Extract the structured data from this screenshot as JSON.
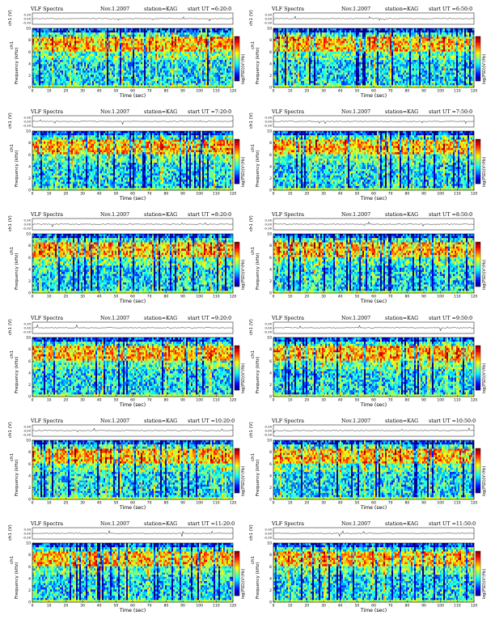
{
  "header": {
    "instrument": "VLF Spectra",
    "station": "station=KAG",
    "xlabel": "Time  (sec)",
    "ylabel_freq": "Frequency  (kHz)",
    "ylabel_ch": "ch1 (V)",
    "ylabel_ch_short": "ch1",
    "colorbar_label": "log(PSD)(V²/Hz)"
  },
  "panels": [
    {
      "date": "Nov.1.2007",
      "start": "start  UT  =6:20:0"
    },
    {
      "date": "Nov.1.2007",
      "start": "start  UT  =6:50:0"
    },
    {
      "date": "Nov.1.2007",
      "start": "start  UT  =7:20:0"
    },
    {
      "date": "Nov.1.2007",
      "start": "start  UT  =7:50:0"
    },
    {
      "date": "Nov.1.2007",
      "start": "start  UT  =8:20:0"
    },
    {
      "date": "Nov.1.2007",
      "start": "start  UT  =8:50:0"
    },
    {
      "date": "Nov.1.2007",
      "start": "start  UT  =9:20:0"
    },
    {
      "date": "Nov.1.2007",
      "start": "start  UT  =9:50:0"
    },
    {
      "date": "Nov.1.2007",
      "start": "start  UT  =10:20:0"
    },
    {
      "date": "Nov.1.2007",
      "start": "start  UT  =10:50:0"
    },
    {
      "date": "Nov.1.2007",
      "start": "start  UT  =11:20:0"
    },
    {
      "date": "Nov.1.2007",
      "start": "start  UT  =11:50:0"
    }
  ],
  "chart_data": {
    "type": "heatmap",
    "title": "VLF Spectra",
    "xlabel": "Time  (sec)",
    "ylabel": "Frequency  (kHz)",
    "xlim": [
      0,
      120
    ],
    "ylim": [
      0,
      10
    ],
    "x_ticks": [
      0,
      10,
      20,
      30,
      40,
      50,
      60,
      70,
      80,
      90,
      100,
      110,
      120
    ],
    "y_ticks": [
      0,
      2,
      4,
      6,
      8,
      10
    ],
    "ch_ylim": [
      -0.3,
      0.3
    ],
    "ch_ticks": [
      "0.30",
      "0.00",
      "-0.30"
    ],
    "colorbar": {
      "label": "log(PSD)(V²/Hz)",
      "colormap": "jet"
    },
    "colors": {
      "low": "#00008f",
      "mid": "#00ffff",
      "high": "#ff0000",
      "top_band": "#0a3cd8"
    }
  }
}
